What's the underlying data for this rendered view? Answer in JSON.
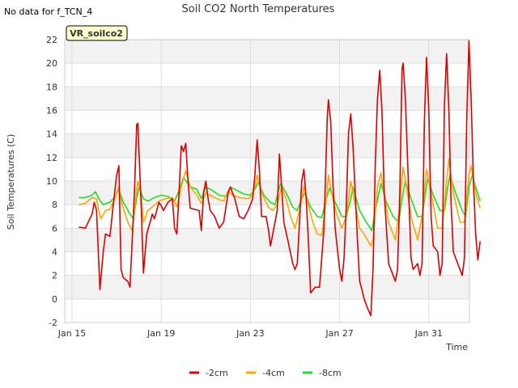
{
  "header": {
    "no_data_note": "No data for f_TCN_4",
    "site_badge": "VR_soilco2"
  },
  "chart_data": {
    "type": "line",
    "title": "Soil CO2 North Temperatures",
    "xlabel": "Time",
    "ylabel": "Soil Temperatures (C)",
    "ylim": [
      -2,
      22
    ],
    "xlim": [
      0,
      18.2
    ],
    "x_unit": "days since Jan 15",
    "yticks": [
      -2,
      0,
      2,
      4,
      6,
      8,
      10,
      12,
      14,
      16,
      18,
      20,
      22
    ],
    "xticks": [
      {
        "label": "Jan 15",
        "day": 0
      },
      {
        "label": "Jan 19",
        "day": 4
      },
      {
        "label": "Jan 23",
        "day": 8
      },
      {
        "label": "Jan 27",
        "day": 12
      },
      {
        "label": "Jan 31",
        "day": 16
      }
    ],
    "grid": true,
    "alternating_bands": true,
    "legend_position": "bottom-center",
    "series": [
      {
        "name": "-2cm",
        "color": "#dd0000",
        "points": [
          [
            0.3,
            6.1
          ],
          [
            0.6,
            6.0
          ],
          [
            0.9,
            7.2
          ],
          [
            1.0,
            8.2
          ],
          [
            1.1,
            7.5
          ],
          [
            1.2,
            3.0
          ],
          [
            1.25,
            0.8
          ],
          [
            1.4,
            4.0
          ],
          [
            1.5,
            5.5
          ],
          [
            1.7,
            5.3
          ],
          [
            1.85,
            8.0
          ],
          [
            2.0,
            10.5
          ],
          [
            2.1,
            11.3
          ],
          [
            2.2,
            2.5
          ],
          [
            2.3,
            1.8
          ],
          [
            2.5,
            1.5
          ],
          [
            2.6,
            1.0
          ],
          [
            2.8,
            9.0
          ],
          [
            2.9,
            14.8
          ],
          [
            2.95,
            14.9
          ],
          [
            3.1,
            8.0
          ],
          [
            3.2,
            2.2
          ],
          [
            3.35,
            5.5
          ],
          [
            3.5,
            6.5
          ],
          [
            3.6,
            7.2
          ],
          [
            3.7,
            6.8
          ],
          [
            3.9,
            8.2
          ],
          [
            4.0,
            7.9
          ],
          [
            4.1,
            7.5
          ],
          [
            4.3,
            8.2
          ],
          [
            4.5,
            8.5
          ],
          [
            4.6,
            6.0
          ],
          [
            4.7,
            5.5
          ],
          [
            4.8,
            9.0
          ],
          [
            4.9,
            13.0
          ],
          [
            5.0,
            12.5
          ],
          [
            5.1,
            13.2
          ],
          [
            5.2,
            10.0
          ],
          [
            5.3,
            7.7
          ],
          [
            5.5,
            7.6
          ],
          [
            5.7,
            7.5
          ],
          [
            5.8,
            5.8
          ],
          [
            5.9,
            9.0
          ],
          [
            6.0,
            10.0
          ],
          [
            6.1,
            8.5
          ],
          [
            6.2,
            7.5
          ],
          [
            6.4,
            7.0
          ],
          [
            6.6,
            6.0
          ],
          [
            6.8,
            6.5
          ],
          [
            7.0,
            9.0
          ],
          [
            7.1,
            9.5
          ],
          [
            7.3,
            8.5
          ],
          [
            7.5,
            7.0
          ],
          [
            7.7,
            6.8
          ],
          [
            7.9,
            7.5
          ],
          [
            8.1,
            8.5
          ],
          [
            8.2,
            10.5
          ],
          [
            8.3,
            13.5
          ],
          [
            8.4,
            11.0
          ],
          [
            8.5,
            7.0
          ],
          [
            8.7,
            7.0
          ],
          [
            8.8,
            6.0
          ],
          [
            8.9,
            4.5
          ],
          [
            9.0,
            5.5
          ],
          [
            9.2,
            7.5
          ],
          [
            9.3,
            12.3
          ],
          [
            9.4,
            9.5
          ],
          [
            9.5,
            6.5
          ],
          [
            9.7,
            4.8
          ],
          [
            9.9,
            3.0
          ],
          [
            10.0,
            2.5
          ],
          [
            10.1,
            3.0
          ],
          [
            10.3,
            10.0
          ],
          [
            10.4,
            11.0
          ],
          [
            10.5,
            8.5
          ],
          [
            10.6,
            5.0
          ],
          [
            10.7,
            0.5
          ],
          [
            10.9,
            1.0
          ],
          [
            11.1,
            1.0
          ],
          [
            11.3,
            6.0
          ],
          [
            11.45,
            15.5
          ],
          [
            11.5,
            16.9
          ],
          [
            11.6,
            15.0
          ],
          [
            11.7,
            10.0
          ],
          [
            11.8,
            6.0
          ],
          [
            12.0,
            2.5
          ],
          [
            12.1,
            1.5
          ],
          [
            12.2,
            3.5
          ],
          [
            12.3,
            8.0
          ],
          [
            12.4,
            14.0
          ],
          [
            12.5,
            15.7
          ],
          [
            12.6,
            13.0
          ],
          [
            12.7,
            9.0
          ],
          [
            12.8,
            5.0
          ],
          [
            12.9,
            1.5
          ],
          [
            13.0,
            0.8
          ],
          [
            13.1,
            0.0
          ],
          [
            13.3,
            -1.0
          ],
          [
            13.4,
            -1.4
          ],
          [
            13.5,
            2.5
          ],
          [
            13.6,
            11.5
          ],
          [
            13.7,
            17.0
          ],
          [
            13.8,
            19.4
          ],
          [
            13.9,
            16.0
          ],
          [
            14.0,
            9.0
          ],
          [
            14.2,
            3.0
          ],
          [
            14.4,
            2.0
          ],
          [
            14.5,
            1.5
          ],
          [
            14.6,
            2.5
          ],
          [
            14.7,
            9.0
          ],
          [
            14.8,
            19.5
          ],
          [
            14.85,
            20.0
          ],
          [
            14.95,
            17.0
          ],
          [
            15.1,
            9.0
          ],
          [
            15.2,
            3.5
          ],
          [
            15.3,
            2.5
          ],
          [
            15.5,
            3.0
          ],
          [
            15.6,
            2.0
          ],
          [
            15.7,
            3.0
          ],
          [
            15.8,
            15.0
          ],
          [
            15.9,
            20.5
          ],
          [
            16.0,
            16.0
          ],
          [
            16.1,
            7.0
          ],
          [
            16.2,
            4.5
          ],
          [
            16.4,
            4.0
          ],
          [
            16.5,
            2.0
          ],
          [
            16.6,
            3.0
          ],
          [
            16.7,
            16.5
          ],
          [
            16.8,
            20.8
          ],
          [
            16.9,
            16.0
          ],
          [
            17.0,
            8.0
          ],
          [
            17.1,
            4.0
          ],
          [
            17.3,
            3.0
          ],
          [
            17.5,
            2.0
          ],
          [
            17.6,
            3.5
          ],
          [
            17.7,
            15.0
          ],
          [
            17.8,
            21.9
          ],
          [
            17.9,
            17.0
          ],
          [
            18.0,
            10.0
          ],
          [
            18.1,
            5.5
          ],
          [
            18.2,
            3.3
          ],
          [
            18.3,
            4.9
          ]
        ]
      },
      {
        "name": "-4cm",
        "color": "#ffa500",
        "points": [
          [
            0.3,
            8.0
          ],
          [
            0.6,
            8.1
          ],
          [
            0.9,
            8.6
          ],
          [
            1.1,
            8.5
          ],
          [
            1.2,
            7.5
          ],
          [
            1.3,
            6.8
          ],
          [
            1.5,
            7.5
          ],
          [
            1.7,
            7.6
          ],
          [
            1.9,
            8.4
          ],
          [
            2.1,
            9.5
          ],
          [
            2.25,
            8.0
          ],
          [
            2.5,
            6.5
          ],
          [
            2.7,
            5.8
          ],
          [
            2.8,
            7.5
          ],
          [
            2.95,
            10.0
          ],
          [
            3.1,
            8.8
          ],
          [
            3.2,
            6.5
          ],
          [
            3.4,
            7.5
          ],
          [
            3.6,
            7.8
          ],
          [
            3.9,
            8.3
          ],
          [
            4.2,
            8.5
          ],
          [
            4.5,
            8.6
          ],
          [
            4.7,
            7.8
          ],
          [
            4.9,
            9.5
          ],
          [
            5.1,
            10.9
          ],
          [
            5.3,
            9.5
          ],
          [
            5.6,
            8.8
          ],
          [
            5.8,
            8.1
          ],
          [
            6.0,
            9.0
          ],
          [
            6.2,
            8.8
          ],
          [
            6.5,
            8.5
          ],
          [
            6.8,
            8.3
          ],
          [
            7.0,
            9.2
          ],
          [
            7.2,
            8.8
          ],
          [
            7.5,
            8.6
          ],
          [
            7.8,
            8.5
          ],
          [
            8.0,
            8.6
          ],
          [
            8.2,
            9.5
          ],
          [
            8.3,
            10.5
          ],
          [
            8.5,
            9.0
          ],
          [
            8.8,
            7.8
          ],
          [
            9.0,
            7.5
          ],
          [
            9.2,
            8.0
          ],
          [
            9.4,
            9.5
          ],
          [
            9.6,
            8.5
          ],
          [
            9.8,
            7.0
          ],
          [
            10.0,
            6.0
          ],
          [
            10.2,
            7.5
          ],
          [
            10.4,
            9.5
          ],
          [
            10.6,
            8.0
          ],
          [
            10.8,
            6.5
          ],
          [
            11.0,
            5.5
          ],
          [
            11.2,
            5.4
          ],
          [
            11.4,
            8.5
          ],
          [
            11.5,
            10.5
          ],
          [
            11.7,
            8.5
          ],
          [
            11.9,
            7.0
          ],
          [
            12.1,
            6.0
          ],
          [
            12.3,
            7.0
          ],
          [
            12.5,
            10.0
          ],
          [
            12.7,
            8.0
          ],
          [
            12.9,
            6.0
          ],
          [
            13.1,
            5.5
          ],
          [
            13.4,
            4.5
          ],
          [
            13.5,
            5.0
          ],
          [
            13.7,
            9.5
          ],
          [
            13.85,
            10.7
          ],
          [
            14.0,
            9.0
          ],
          [
            14.2,
            6.5
          ],
          [
            14.5,
            5.0
          ],
          [
            14.7,
            8.0
          ],
          [
            14.85,
            11.2
          ],
          [
            15.0,
            9.5
          ],
          [
            15.2,
            7.0
          ],
          [
            15.5,
            5.0
          ],
          [
            15.7,
            7.0
          ],
          [
            15.9,
            11.0
          ],
          [
            16.1,
            9.0
          ],
          [
            16.4,
            6.0
          ],
          [
            16.6,
            6.0
          ],
          [
            16.8,
            10.0
          ],
          [
            16.9,
            11.9
          ],
          [
            17.1,
            9.0
          ],
          [
            17.4,
            6.5
          ],
          [
            17.6,
            6.5
          ],
          [
            17.8,
            10.5
          ],
          [
            17.9,
            11.3
          ],
          [
            18.1,
            9.0
          ],
          [
            18.3,
            7.7
          ]
        ]
      },
      {
        "name": "-8cm",
        "color": "#22dd22",
        "points": [
          [
            0.3,
            8.6
          ],
          [
            0.6,
            8.6
          ],
          [
            0.9,
            8.8
          ],
          [
            1.05,
            9.1
          ],
          [
            1.2,
            8.5
          ],
          [
            1.4,
            8.0
          ],
          [
            1.7,
            8.2
          ],
          [
            1.9,
            8.6
          ],
          [
            2.1,
            9.3
          ],
          [
            2.3,
            8.2
          ],
          [
            2.6,
            7.2
          ],
          [
            2.75,
            6.8
          ],
          [
            2.9,
            8.5
          ],
          [
            3.0,
            9.5
          ],
          [
            3.2,
            8.5
          ],
          [
            3.4,
            8.3
          ],
          [
            3.7,
            8.6
          ],
          [
            4.0,
            8.8
          ],
          [
            4.3,
            8.7
          ],
          [
            4.6,
            8.3
          ],
          [
            4.8,
            9.2
          ],
          [
            5.0,
            10.3
          ],
          [
            5.3,
            9.5
          ],
          [
            5.6,
            9.3
          ],
          [
            5.8,
            8.5
          ],
          [
            6.0,
            9.5
          ],
          [
            6.3,
            9.2
          ],
          [
            6.6,
            8.8
          ],
          [
            6.9,
            8.7
          ],
          [
            7.1,
            9.5
          ],
          [
            7.4,
            9.2
          ],
          [
            7.7,
            8.9
          ],
          [
            8.0,
            8.8
          ],
          [
            8.2,
            9.3
          ],
          [
            8.35,
            9.9
          ],
          [
            8.6,
            8.8
          ],
          [
            8.9,
            8.2
          ],
          [
            9.1,
            8.0
          ],
          [
            9.35,
            9.8
          ],
          [
            9.6,
            9.0
          ],
          [
            9.9,
            7.8
          ],
          [
            10.1,
            7.5
          ],
          [
            10.3,
            8.5
          ],
          [
            10.45,
            9.0
          ],
          [
            10.7,
            7.8
          ],
          [
            11.0,
            7.0
          ],
          [
            11.2,
            6.9
          ],
          [
            11.4,
            8.5
          ],
          [
            11.55,
            9.4
          ],
          [
            11.8,
            8.2
          ],
          [
            12.1,
            7.0
          ],
          [
            12.3,
            7.0
          ],
          [
            12.5,
            8.5
          ],
          [
            12.6,
            9.5
          ],
          [
            12.9,
            7.5
          ],
          [
            13.2,
            6.5
          ],
          [
            13.45,
            5.8
          ],
          [
            13.6,
            7.5
          ],
          [
            13.85,
            9.8
          ],
          [
            14.1,
            8.2
          ],
          [
            14.4,
            7.0
          ],
          [
            14.65,
            6.5
          ],
          [
            14.8,
            8.5
          ],
          [
            14.95,
            10.0
          ],
          [
            15.2,
            8.5
          ],
          [
            15.5,
            7.0
          ],
          [
            15.7,
            7.0
          ],
          [
            15.85,
            9.0
          ],
          [
            15.95,
            10.2
          ],
          [
            16.2,
            8.8
          ],
          [
            16.5,
            7.5
          ],
          [
            16.7,
            7.5
          ],
          [
            16.85,
            9.5
          ],
          [
            16.95,
            10.5
          ],
          [
            17.2,
            9.0
          ],
          [
            17.5,
            7.5
          ],
          [
            17.65,
            7.0
          ],
          [
            17.8,
            9.5
          ],
          [
            17.95,
            10.5
          ],
          [
            18.1,
            9.5
          ],
          [
            18.3,
            8.3
          ]
        ]
      }
    ]
  }
}
